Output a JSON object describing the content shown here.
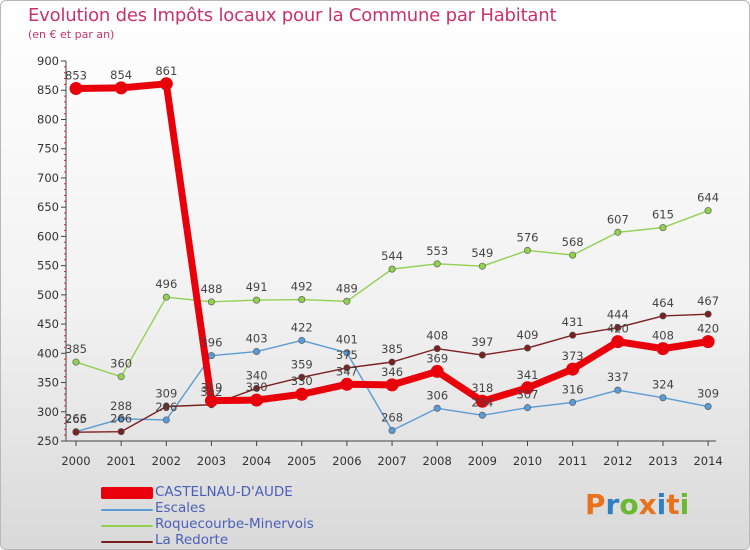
{
  "header": {
    "title": "Evolution des Impôts locaux pour la Commune par Habitant",
    "subtitle": "(en € et par an)"
  },
  "logo": {
    "letters": [
      {
        "char": "P",
        "color": "#e8731c"
      },
      {
        "char": "r",
        "color": "#2f7fc4"
      },
      {
        "char": "o",
        "color": "#6bb833"
      },
      {
        "char": "x",
        "color": "#e8731c"
      },
      {
        "char": "i",
        "color": "#2f7fc4"
      },
      {
        "char": "t",
        "color": "#e8731c"
      },
      {
        "char": "i",
        "color": "#6bb833"
      }
    ]
  },
  "chart_data": {
    "type": "line",
    "title": "Evolution des Impôts locaux pour la Commune par Habitant",
    "subtitle": "(en € et par an)",
    "xlabel": "",
    "ylabel": "",
    "x": [
      "2000",
      "2001",
      "2002",
      "2003",
      "2004",
      "2005",
      "2006",
      "2007",
      "2008",
      "2009",
      "2010",
      "2011",
      "2012",
      "2013",
      "2014"
    ],
    "ylim": [
      250,
      900
    ],
    "yticks": [
      250,
      300,
      350,
      400,
      450,
      500,
      550,
      600,
      650,
      700,
      750,
      800,
      850,
      900
    ],
    "grid": false,
    "legend_position": "bottom-left",
    "series": [
      {
        "name": "CASTELNAU-D'AUDE",
        "color": "#e8000b",
        "highlight": true,
        "values": [
          853,
          854,
          861,
          319,
          320,
          330,
          347,
          346,
          369,
          318,
          341,
          373,
          420,
          408,
          420
        ]
      },
      {
        "name": "Escales",
        "color": "#5b9bd5",
        "highlight": false,
        "values": [
          266,
          288,
          286,
          396,
          403,
          422,
          401,
          268,
          306,
          294,
          307,
          316,
          337,
          324,
          309
        ]
      },
      {
        "name": "Roquecourbe-Minervois",
        "color": "#92d050",
        "highlight": false,
        "values": [
          385,
          360,
          496,
          488,
          491,
          492,
          489,
          544,
          553,
          549,
          576,
          568,
          607,
          615,
          644
        ]
      },
      {
        "name": "La Redorte",
        "color": "#7b2020",
        "highlight": false,
        "values": [
          265,
          266,
          309,
          312,
          340,
          359,
          375,
          385,
          408,
          397,
          409,
          431,
          444,
          464,
          467
        ]
      }
    ]
  }
}
